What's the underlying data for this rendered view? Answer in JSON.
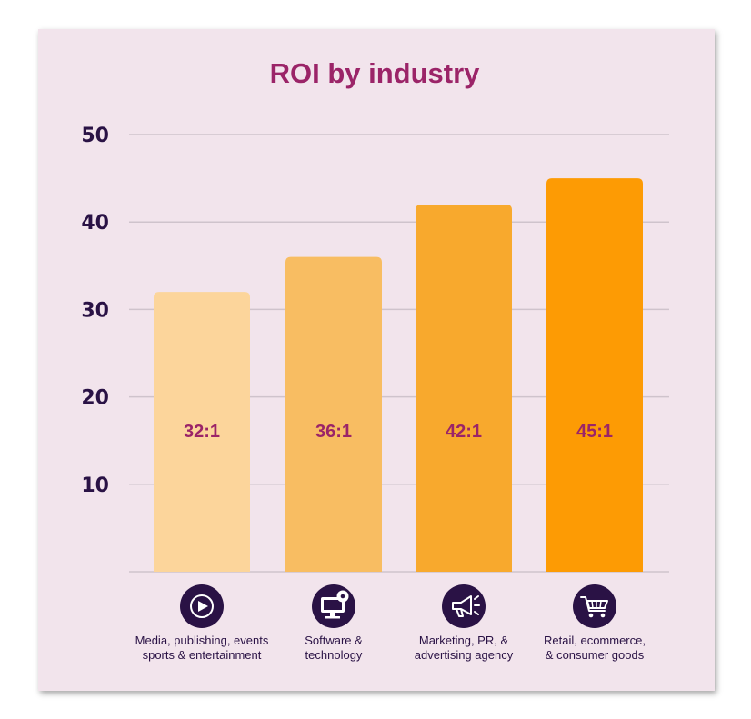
{
  "chart_data": {
    "type": "bar",
    "title": "ROI by industry",
    "xlabel": "",
    "ylabel": "",
    "ylim": [
      0,
      50
    ],
    "yticks": [
      10,
      20,
      30,
      40,
      50
    ],
    "grid": true,
    "categories": [
      [
        "Media, publishing, events",
        "sports & entertainment"
      ],
      [
        "Software &",
        "technology"
      ],
      [
        "Marketing, PR, &",
        "advertising agency"
      ],
      [
        "Retail, ecommerce,",
        "& consumer goods"
      ]
    ],
    "values": [
      32,
      36,
      42,
      45
    ],
    "data_labels": [
      "32:1",
      "36:1",
      "42:1",
      "45:1"
    ],
    "colors": [
      "#fcd59b",
      "#f8bd62",
      "#f8a92d",
      "#fd9b04"
    ],
    "icons": [
      "play-icon",
      "monitor-gear-icon",
      "megaphone-icon",
      "shopping-cart-icon"
    ],
    "icon_color": "#2a1245",
    "title_color": "#9b2468",
    "background": "#f2e4ec"
  }
}
